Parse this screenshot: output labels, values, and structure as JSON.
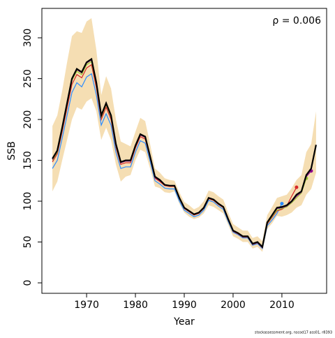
{
  "chart_data": {
    "type": "line",
    "xlabel": "Year",
    "ylabel": "SSB",
    "annotation": "ρ = 0.006",
    "footnote": "stockassessment.org, nscod17 ass01, r8393",
    "x": [
      1963,
      1964,
      1965,
      1966,
      1967,
      1968,
      1969,
      1970,
      1971,
      1972,
      1973,
      1974,
      1975,
      1976,
      1977,
      1978,
      1979,
      1980,
      1981,
      1982,
      1983,
      1984,
      1985,
      1986,
      1987,
      1988,
      1989,
      1990,
      1991,
      1992,
      1993,
      1994,
      1995,
      1996,
      1997,
      1998,
      1999,
      2000,
      2001,
      2002,
      2003,
      2004,
      2005,
      2006,
      2007,
      2008,
      2009,
      2010,
      2011,
      2012,
      2013,
      2014,
      2015,
      2016,
      2017
    ],
    "band": {
      "color": "#f5deb3",
      "upper": [
        192,
        205,
        235,
        270,
        302,
        308,
        306,
        320,
        324,
        285,
        230,
        253,
        238,
        200,
        173,
        170,
        167,
        185,
        202,
        198,
        170,
        140,
        135,
        128,
        126,
        125,
        111,
        99,
        95,
        90,
        93,
        100,
        113,
        111,
        106,
        102,
        86,
        72,
        68,
        64,
        64,
        55,
        57,
        51,
        83,
        93,
        104,
        106,
        108,
        116,
        126,
        132,
        160,
        170,
        210
      ],
      "lower": [
        112,
        124,
        150,
        175,
        200,
        215,
        212,
        222,
        226,
        210,
        175,
        190,
        175,
        145,
        124,
        130,
        132,
        150,
        163,
        160,
        140,
        118,
        116,
        111,
        110,
        112,
        97,
        86,
        81,
        78,
        80,
        85,
        95,
        93,
        89,
        85,
        71,
        57,
        54,
        50,
        50,
        42,
        44,
        38,
        66,
        73,
        82,
        81,
        83,
        86,
        92,
        95,
        108,
        115,
        135
      ]
    },
    "series": [
      {
        "color": "#2b8cff",
        "values": [
          140,
          150,
          177,
          205,
          233,
          245,
          240,
          252,
          256,
          230,
          193,
          207,
          193,
          160,
          140,
          142,
          142,
          160,
          174,
          171,
          149,
          125,
          121,
          116,
          115,
          115,
          100,
          89,
          85,
          81,
          83,
          89,
          101,
          99,
          94,
          90,
          75,
          62,
          59,
          55,
          55,
          46,
          48,
          42,
          70,
          77,
          85,
          97,
          null,
          null,
          null,
          null,
          null,
          null,
          null
        ]
      },
      {
        "color": "#d62728",
        "values": [
          148,
          158,
          185,
          214,
          243,
          255,
          251,
          263,
          267,
          239,
          200,
          215,
          200,
          166,
          145,
          147,
          147,
          165,
          179,
          176,
          153,
          128,
          124,
          119,
          118,
          118,
          103,
          91,
          87,
          83,
          85,
          91,
          103,
          101,
          96,
          92,
          77,
          63,
          60,
          56,
          56,
          47,
          49,
          43,
          72,
          80,
          88,
          90,
          94,
          106,
          117,
          null,
          null,
          null,
          null
        ]
      },
      {
        "color": "#9acd32",
        "values": [
          150,
          160,
          188,
          218,
          248,
          259,
          255,
          267,
          271,
          243,
          203,
          218,
          203,
          168,
          147,
          149,
          149,
          167,
          181,
          178,
          154,
          129,
          125,
          120,
          119,
          119,
          104,
          92,
          88,
          84,
          86,
          92,
          104,
          102,
          97,
          93,
          78,
          64,
          61,
          57,
          57,
          48,
          50,
          44,
          73,
          81,
          89,
          91,
          93,
          98,
          104,
          110,
          128,
          null,
          null
        ]
      },
      {
        "color": "#8b008b",
        "values": [
          151,
          161,
          189,
          219,
          249,
          261,
          257,
          269,
          273,
          244,
          204,
          219,
          204,
          169,
          147,
          149,
          149,
          167,
          181,
          178,
          154,
          129,
          125,
          120,
          119,
          119,
          104,
          92,
          88,
          84,
          86,
          92,
          104,
          102,
          97,
          93,
          78,
          64,
          61,
          57,
          57,
          48,
          50,
          44,
          74,
          82,
          91,
          92,
          94,
          99,
          106,
          111,
          130,
          137,
          null
        ]
      },
      {
        "color": "#000000",
        "main": true,
        "values": [
          152,
          162,
          190,
          220,
          250,
          262,
          258,
          270,
          274,
          245,
          205,
          220,
          205,
          170,
          148,
          150,
          150,
          168,
          182,
          179,
          155,
          130,
          126,
          120,
          119,
          119,
          104,
          92,
          88,
          84,
          86,
          92,
          104,
          102,
          97,
          93,
          78,
          64,
          61,
          57,
          57,
          48,
          50,
          44,
          74,
          83,
          92,
          93,
          95,
          100,
          108,
          112,
          132,
          140,
          169
        ]
      }
    ],
    "xlim": [
      1960.84,
      2019.16
    ],
    "xticks": [
      1970,
      1980,
      1990,
      2000,
      2010
    ],
    "ylim": [
      -12.8,
      336
    ],
    "yticks": [
      0,
      50,
      100,
      150,
      200,
      250,
      300
    ]
  }
}
